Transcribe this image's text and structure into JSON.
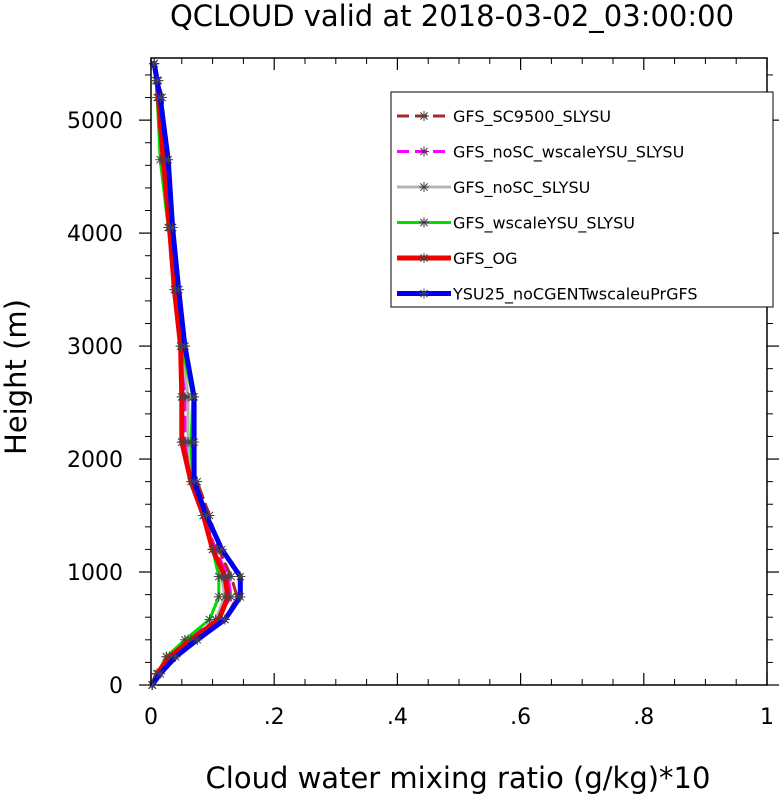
{
  "chart_data": {
    "type": "line",
    "title": "QCLOUD valid at 2018-03-02_03:00:00",
    "xlabel": "Cloud water mixing ratio (g/kg)*10",
    "ylabel": "Height (m)",
    "xlim": [
      0,
      1
    ],
    "ylim": [
      0,
      5550
    ],
    "x_ticks": [
      {
        "value": 0,
        "label": "0"
      },
      {
        "value": 0.2,
        "label": ".2"
      },
      {
        "value": 0.4,
        "label": ".4"
      },
      {
        "value": 0.6,
        "label": ".6"
      },
      {
        "value": 0.8,
        "label": ".8"
      },
      {
        "value": 1,
        "label": "1"
      }
    ],
    "y_ticks": [
      {
        "value": 0,
        "label": "0"
      },
      {
        "value": 1000,
        "label": "1000"
      },
      {
        "value": 2000,
        "label": "2000"
      },
      {
        "value": 3000,
        "label": "3000"
      },
      {
        "value": 4000,
        "label": "4000"
      },
      {
        "value": 5000,
        "label": "5000"
      }
    ],
    "legend_position": "top-right",
    "grid": false,
    "series": [
      {
        "name": "GFS_SC9500_SLYSU",
        "color": "#a52a2a",
        "dash": "dash",
        "width": 3,
        "x": [
          0.002,
          0.01,
          0.03,
          0.07,
          0.12,
          0.14,
          0.13,
          0.11,
          0.095,
          0.075,
          0.05,
          0.05,
          0.055,
          0.045,
          0.035,
          0.025,
          0.018,
          0.012,
          0.005
        ],
        "y": [
          0,
          100,
          250,
          400,
          580,
          780,
          960,
          1200,
          1500,
          1800,
          2150,
          2550,
          3000,
          3500,
          4050,
          4650,
          5200,
          5350,
          5500
        ]
      },
      {
        "name": "GFS_noSC_wscaleYSU_SLYSU",
        "color": "#ff00ff",
        "dash": "dash",
        "width": 3,
        "x": [
          0.002,
          0.01,
          0.025,
          0.06,
          0.105,
          0.13,
          0.125,
          0.105,
          0.085,
          0.07,
          0.055,
          0.055,
          0.05,
          0.04,
          0.032,
          0.022,
          0.015,
          0.01,
          0.005
        ],
        "y": [
          0,
          100,
          250,
          400,
          580,
          780,
          960,
          1200,
          1500,
          1800,
          2150,
          2550,
          3000,
          3500,
          4050,
          4650,
          5200,
          5350,
          5500
        ]
      },
      {
        "name": "GFS_noSC_SLYSU",
        "color": "#b4b4b4",
        "dash": "solid",
        "width": 3,
        "x": [
          0.002,
          0.012,
          0.03,
          0.065,
          0.105,
          0.12,
          0.115,
          0.1,
          0.085,
          0.068,
          0.06,
          0.06,
          0.05,
          0.04,
          0.03,
          0.022,
          0.015,
          0.01,
          0.005
        ],
        "y": [
          0,
          100,
          250,
          400,
          580,
          780,
          960,
          1200,
          1500,
          1800,
          2150,
          2550,
          3000,
          3500,
          4050,
          4650,
          5200,
          5350,
          5500
        ]
      },
      {
        "name": "GFS_wscaleYSU_SLYSU",
        "color": "#00dd00",
        "dash": "solid",
        "width": 3,
        "x": [
          0.002,
          0.01,
          0.025,
          0.055,
          0.095,
          0.11,
          0.11,
          0.1,
          0.085,
          0.068,
          0.065,
          0.068,
          0.05,
          0.04,
          0.028,
          0.015,
          0.01,
          0.008,
          0.005
        ],
        "y": [
          0,
          100,
          250,
          400,
          580,
          780,
          960,
          1200,
          1500,
          1800,
          2150,
          2550,
          3000,
          3500,
          4050,
          4650,
          5200,
          5350,
          5500
        ]
      },
      {
        "name": "GFS_OG",
        "color": "#ee0000",
        "dash": "solid",
        "width": 5,
        "x": [
          0.002,
          0.01,
          0.03,
          0.065,
          0.11,
          0.125,
          0.12,
          0.1,
          0.085,
          0.065,
          0.05,
          0.05,
          0.048,
          0.038,
          0.03,
          0.02,
          0.012,
          0.01,
          0.005
        ],
        "y": [
          0,
          100,
          250,
          400,
          580,
          780,
          960,
          1200,
          1500,
          1800,
          2150,
          2550,
          3000,
          3500,
          4050,
          4650,
          5200,
          5350,
          5500
        ]
      },
      {
        "name": "YSU25_noCGENTwscaleuPrGFS",
        "color": "#0000ee",
        "dash": "solid",
        "width": 5,
        "x": [
          0.002,
          0.015,
          0.04,
          0.075,
          0.12,
          0.145,
          0.145,
          0.115,
          0.09,
          0.07,
          0.07,
          0.07,
          0.055,
          0.045,
          0.035,
          0.028,
          0.015,
          0.01,
          0.005
        ],
        "y": [
          0,
          100,
          250,
          400,
          580,
          780,
          960,
          1200,
          1500,
          1800,
          2150,
          2550,
          3000,
          3500,
          4050,
          4650,
          5200,
          5350,
          5500
        ]
      }
    ]
  }
}
